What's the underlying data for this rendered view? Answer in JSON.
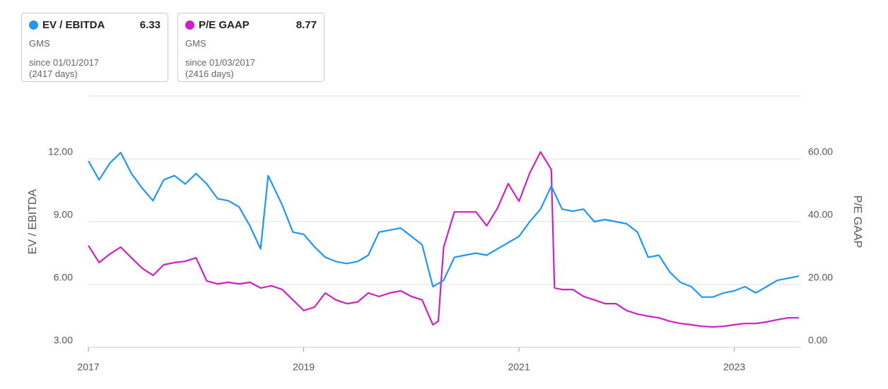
{
  "chart_data": {
    "type": "line",
    "cards": [
      {
        "name": "EV / EBITDA",
        "value": 6.33,
        "ticker": "GMS",
        "since": "since 01/01/2017",
        "days": "(2417 days)"
      },
      {
        "name": "P/E GAAP",
        "value": 8.77,
        "ticker": "GMS",
        "since": "since 01/03/2017",
        "days": "(2416 days)"
      }
    ],
    "ylabel": "EV / EBITDA",
    "y2label": "P/E GAAP",
    "xlim": [
      2017,
      2023.62
    ],
    "xticks": [
      2017,
      2019,
      2021,
      2023
    ],
    "ylim": [
      3,
      15
    ],
    "yticks": [
      {
        "value": 3,
        "label": "3.00"
      },
      {
        "value": 6,
        "label": "6.00"
      },
      {
        "value": 9,
        "label": "9.00"
      },
      {
        "value": 12,
        "label": "12.00"
      }
    ],
    "y2lim": [
      0,
      80
    ],
    "y2ticks": [
      {
        "value": 0,
        "label": "0.00"
      },
      {
        "value": 20,
        "label": "20.00"
      },
      {
        "value": 40,
        "label": "40.00"
      },
      {
        "value": 60,
        "label": "60.00"
      }
    ],
    "grid": true,
    "series": [
      {
        "name": "EV / EBITDA",
        "color": "#2196f3",
        "axis": "y",
        "x": [
          2017.0,
          2017.1,
          2017.2,
          2017.3,
          2017.4,
          2017.5,
          2017.6,
          2017.7,
          2017.8,
          2017.9,
          2018.0,
          2018.1,
          2018.2,
          2018.3,
          2018.4,
          2018.5,
          2018.6,
          2018.67,
          2018.8,
          2018.9,
          2019.0,
          2019.1,
          2019.2,
          2019.3,
          2019.4,
          2019.5,
          2019.6,
          2019.7,
          2019.8,
          2019.9,
          2020.0,
          2020.1,
          2020.2,
          2020.3,
          2020.4,
          2020.5,
          2020.6,
          2020.7,
          2020.8,
          2020.9,
          2021.0,
          2021.1,
          2021.2,
          2021.3,
          2021.4,
          2021.5,
          2021.6,
          2021.7,
          2021.8,
          2021.9,
          2022.0,
          2022.1,
          2022.2,
          2022.3,
          2022.4,
          2022.5,
          2022.6,
          2022.7,
          2022.8,
          2022.9,
          2023.0,
          2023.1,
          2023.2,
          2023.3,
          2023.4,
          2023.5,
          2023.6
        ],
        "values": [
          11.9,
          11.0,
          11.8,
          12.3,
          11.3,
          10.6,
          10.0,
          11.0,
          11.2,
          10.8,
          11.3,
          10.8,
          10.1,
          10.0,
          9.7,
          8.8,
          7.7,
          11.2,
          9.8,
          8.5,
          8.4,
          7.8,
          7.3,
          7.1,
          7.0,
          7.1,
          7.4,
          8.5,
          8.6,
          8.7,
          8.3,
          7.9,
          5.9,
          6.2,
          7.3,
          7.4,
          7.5,
          7.4,
          7.7,
          8.0,
          8.3,
          9.0,
          9.6,
          10.7,
          9.6,
          9.5,
          9.6,
          9.0,
          9.1,
          9.0,
          8.9,
          8.5,
          7.3,
          7.4,
          6.6,
          6.1,
          5.9,
          5.4,
          5.4,
          5.6,
          5.7,
          5.9,
          5.6,
          5.9,
          6.2,
          6.3,
          6.4
        ]
      },
      {
        "name": "P/E GAAP",
        "color": "#cc22c4",
        "axis": "y2",
        "x": [
          2017.0,
          2017.1,
          2017.2,
          2017.3,
          2017.4,
          2017.5,
          2017.6,
          2017.7,
          2017.8,
          2017.9,
          2018.0,
          2018.1,
          2018.2,
          2018.3,
          2018.4,
          2018.5,
          2018.6,
          2018.7,
          2018.8,
          2018.9,
          2019.0,
          2019.1,
          2019.2,
          2019.3,
          2019.4,
          2019.5,
          2019.6,
          2019.7,
          2019.8,
          2019.9,
          2020.0,
          2020.1,
          2020.2,
          2020.25,
          2020.3,
          2020.4,
          2020.5,
          2020.6,
          2020.7,
          2020.8,
          2020.9,
          2021.0,
          2021.1,
          2021.2,
          2021.3,
          2021.33,
          2021.4,
          2021.5,
          2021.6,
          2021.7,
          2021.8,
          2021.9,
          2022.0,
          2022.1,
          2022.2,
          2022.3,
          2022.4,
          2022.5,
          2022.6,
          2022.7,
          2022.8,
          2022.9,
          2023.0,
          2023.1,
          2023.2,
          2023.3,
          2023.4,
          2023.5,
          2023.6
        ],
        "values": [
          32.4,
          27,
          29.7,
          31.9,
          28.5,
          25.2,
          22.9,
          26.3,
          27,
          27.4,
          28.5,
          21.1,
          20.2,
          20.7,
          20.2,
          20.7,
          18.9,
          19.6,
          18.4,
          15.1,
          11.7,
          12.8,
          17.3,
          15.1,
          13.9,
          14.4,
          17.3,
          16.2,
          17.3,
          18.0,
          16.2,
          15.1,
          7.2,
          8.3,
          31.9,
          43.1,
          43.1,
          43.1,
          38.7,
          44.3,
          52.1,
          46.5,
          55.5,
          62.2,
          56.6,
          18.9,
          18.4,
          18.4,
          16.2,
          15.1,
          13.9,
          13.9,
          11.7,
          10.6,
          9.9,
          9.4,
          8.3,
          7.6,
          7.2,
          6.7,
          6.5,
          6.7,
          7.2,
          7.6,
          7.6,
          8.1,
          8.8,
          9.4,
          9.4
        ]
      }
    ]
  }
}
